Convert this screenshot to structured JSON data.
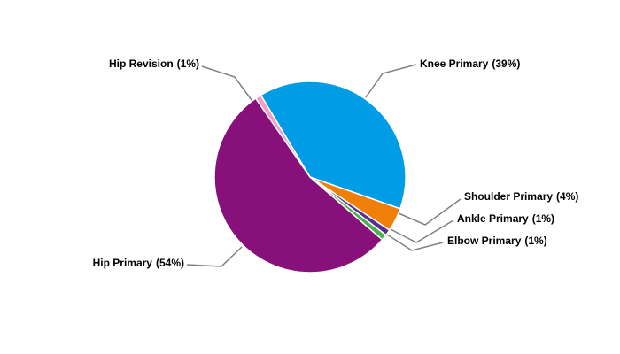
{
  "chart_data": {
    "type": "pie",
    "categories": [
      "Knee Primary",
      "Shoulder Primary",
      "Ankle Primary",
      "Elbow Primary",
      "Hip Primary",
      "Hip Revision"
    ],
    "values": [
      39,
      4,
      1,
      1,
      54,
      1
    ],
    "value_labels": [
      "(39%)",
      "(4%)",
      "(1%)",
      "(1%)",
      "(54%)",
      "(1%)"
    ],
    "colors": [
      "#009de6",
      "#f07f09",
      "#5b2c8f",
      "#4caf50",
      "#87107a",
      "#f59ac9"
    ]
  }
}
